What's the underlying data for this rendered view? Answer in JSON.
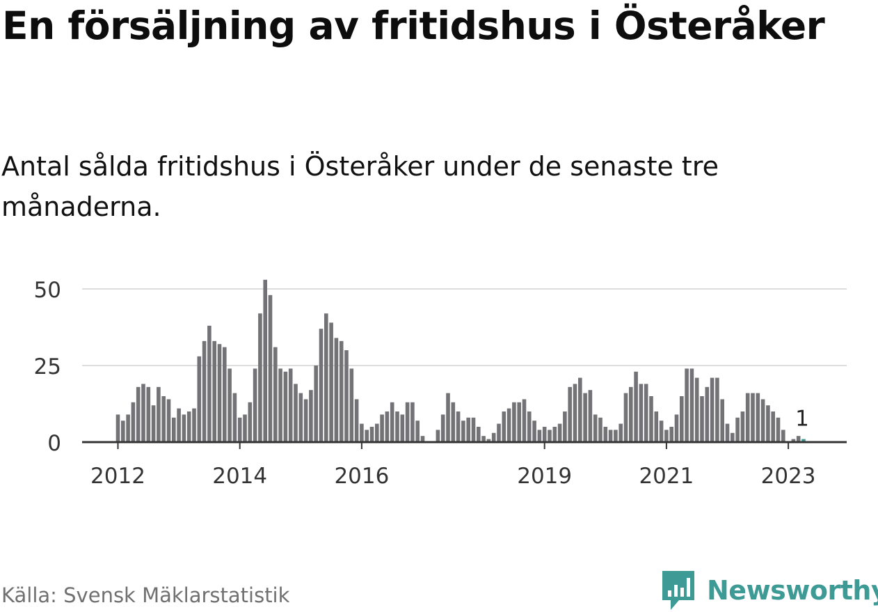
{
  "title": "En försäljning av fritidshus i Österåker",
  "subtitle": "Antal sålda fritidshus i Österåker under de senaste tre månaderna.",
  "source": "Källa: Svensk Mäklarstatistik",
  "brand": "Newsworthy",
  "colors": {
    "bar": "#737276",
    "highlight": "#3d9a95",
    "grid": "#dddddd",
    "axis": "#333333",
    "brand": "#3d9a95"
  },
  "chart_data": {
    "type": "bar",
    "title": "En försäljning av fritidshus i Österåker",
    "xlabel": "",
    "ylabel": "",
    "ylim": [
      0,
      55
    ],
    "yticks": [
      0,
      25,
      50
    ],
    "xticks": [
      "2012",
      "2014",
      "2016",
      "2019",
      "2021",
      "2023"
    ],
    "x_start": "2012-01",
    "series": [
      {
        "name": "Antal sålda fritidshus",
        "values": [
          9,
          7,
          9,
          13,
          18,
          19,
          18,
          12,
          18,
          15,
          14,
          8,
          11,
          9,
          10,
          11,
          28,
          33,
          38,
          33,
          32,
          31,
          24,
          16,
          8,
          9,
          13,
          24,
          42,
          53,
          48,
          31,
          24,
          23,
          24,
          19,
          16,
          14,
          17,
          25,
          37,
          42,
          39,
          34,
          33,
          30,
          24,
          14,
          6,
          4,
          5,
          6,
          9,
          10,
          13,
          10,
          9,
          13,
          13,
          7,
          2,
          0,
          0,
          4,
          9,
          16,
          13,
          10,
          7,
          8,
          8,
          5,
          2,
          1,
          3,
          6,
          10,
          11,
          13,
          13,
          14,
          10,
          7,
          4,
          5,
          4,
          5,
          6,
          10,
          18,
          19,
          21,
          16,
          17,
          9,
          8,
          5,
          4,
          4,
          6,
          16,
          18,
          23,
          19,
          19,
          15,
          10,
          7,
          4,
          5,
          9,
          15,
          24,
          24,
          21,
          15,
          18,
          21,
          21,
          14,
          6,
          3,
          8,
          10,
          16,
          16,
          16,
          14,
          12,
          10,
          8,
          4,
          0,
          1,
          2,
          1
        ]
      }
    ],
    "annotations": [
      {
        "label": "1",
        "value": 1,
        "point": "latest"
      }
    ]
  }
}
